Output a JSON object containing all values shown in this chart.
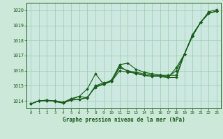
{
  "title": "Graphe pression niveau de la mer (hPa)",
  "bg_color": "#cce8d8",
  "plot_bg_color": "#cce8e0",
  "grid_color": "#99ccaa",
  "line_color": "#1a5c1a",
  "marker_color": "#1a5c1a",
  "xlim": [
    -0.5,
    23.5
  ],
  "ylim": [
    1013.5,
    1020.5
  ],
  "yticks": [
    1014,
    1015,
    1016,
    1017,
    1018,
    1019,
    1020
  ],
  "xticks": [
    0,
    1,
    2,
    3,
    4,
    5,
    6,
    7,
    8,
    9,
    10,
    11,
    12,
    13,
    14,
    15,
    16,
    17,
    18,
    19,
    20,
    21,
    22,
    23
  ],
  "series": [
    [
      1013.8,
      1014.0,
      1014.0,
      1014.0,
      1013.9,
      1014.1,
      1014.1,
      1014.2,
      1015.0,
      1015.1,
      1015.4,
      1016.4,
      1016.5,
      1016.1,
      1015.9,
      1015.8,
      1015.7,
      1015.7,
      1015.7,
      1017.1,
      1018.3,
      1019.2,
      1019.8,
      1019.95
    ],
    [
      1013.8,
      1014.0,
      1014.05,
      1014.0,
      1013.85,
      1014.1,
      1014.3,
      1014.8,
      1015.8,
      1015.1,
      1015.3,
      1016.3,
      1015.95,
      1015.8,
      1015.7,
      1015.6,
      1015.7,
      1015.55,
      1016.2,
      1017.1,
      1018.3,
      1019.2,
      1019.8,
      1019.95
    ],
    [
      1013.8,
      1014.0,
      1014.05,
      1013.95,
      1013.85,
      1014.05,
      1014.1,
      1014.25,
      1014.9,
      1015.1,
      1015.3,
      1016.0,
      1015.9,
      1015.85,
      1015.7,
      1015.65,
      1015.6,
      1015.55,
      1015.55,
      1017.1,
      1018.4,
      1019.2,
      1019.8,
      1019.95
    ],
    [
      1013.8,
      1014.0,
      1014.0,
      1014.0,
      1013.9,
      1014.15,
      1014.3,
      1014.2,
      1015.0,
      1015.2,
      1015.3,
      1016.2,
      1016.0,
      1015.9,
      1015.8,
      1015.7,
      1015.7,
      1015.6,
      1016.0,
      1017.1,
      1018.3,
      1019.2,
      1019.9,
      1020.05
    ]
  ]
}
